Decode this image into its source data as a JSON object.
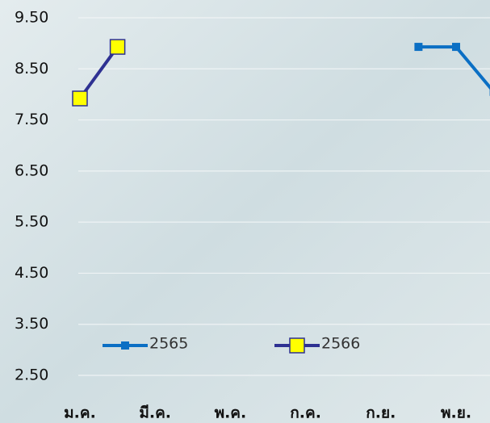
{
  "chart_data": {
    "type": "line",
    "categories": [
      "ม.ค.",
      null,
      "มี.ค.",
      null,
      "พ.ค.",
      null,
      "ก.ค.",
      null,
      "ก.ย.",
      null,
      "พ.ย.",
      null
    ],
    "series": [
      {
        "name": "2565",
        "color": "#0b6fc4",
        "marker_color": "#0b6fc4",
        "values": [
          null,
          null,
          null,
          null,
          null,
          null,
          null,
          null,
          null,
          8.93,
          8.93,
          8.05
        ]
      },
      {
        "name": "2566",
        "color": "#2e3192",
        "marker_color": "#ffff00",
        "values": [
          7.92,
          8.93,
          null,
          null,
          null,
          null,
          null,
          null,
          null,
          null,
          null,
          null
        ]
      }
    ],
    "ylim": [
      2.5,
      9.5
    ],
    "yticks": [
      {
        "value": 2.5,
        "label": "2.50"
      },
      {
        "value": 3.5,
        "label": "3.50"
      },
      {
        "value": 4.5,
        "label": "4.50"
      },
      {
        "value": 5.5,
        "label": "5.50"
      },
      {
        "value": 6.5,
        "label": "6.50"
      },
      {
        "value": 7.5,
        "label": "7.50"
      },
      {
        "value": 8.5,
        "label": "8.50"
      },
      {
        "value": 9.5,
        "label": "9.50"
      }
    ],
    "grid": true
  }
}
